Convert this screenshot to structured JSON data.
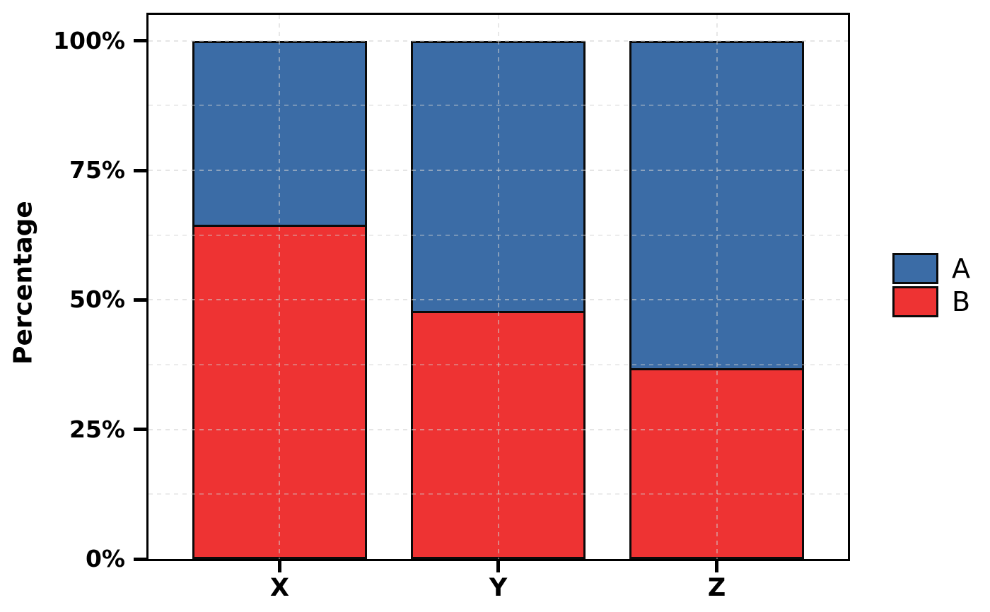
{
  "page": {
    "background": "#ffffff"
  },
  "chart_data": {
    "type": "bar",
    "variant": "stacked-100-percent",
    "title": "",
    "xlabel": "",
    "ylabel": "Percentage",
    "categories": [
      "X",
      "Y",
      "Z"
    ],
    "series": [
      {
        "name": "A",
        "color": "#3B6CA6",
        "values": [
          35.5,
          52.2,
          63.2
        ]
      },
      {
        "name": "B",
        "color": "#EE3333",
        "values": [
          64.5,
          47.8,
          36.8
        ]
      }
    ],
    "stack_order_bottom_to_top": [
      "B",
      "A"
    ],
    "y_ticks": [
      {
        "value": 0,
        "label": "0%"
      },
      {
        "value": 25,
        "label": "25%"
      },
      {
        "value": 50,
        "label": "50%"
      },
      {
        "value": 75,
        "label": "75%"
      },
      {
        "value": 100,
        "label": "100%"
      }
    ],
    "x_tick_labels": [
      "X",
      "Y",
      "Z"
    ],
    "ylim": [
      0,
      105
    ],
    "grid": {
      "style": "dashed",
      "on_top_of_bars": true,
      "major_y": [
        25,
        50,
        75,
        100
      ],
      "minor_y": [
        12.5,
        37.5,
        62.5,
        87.5
      ],
      "vertical_at_category_centers": true,
      "color": "#d0d0d0"
    },
    "bar_outline_color": "#0a0a0a",
    "panel_border_color": "#000000",
    "axis_text_color": "#000000",
    "legend": {
      "position": "right",
      "entries": [
        {
          "label": "A",
          "color": "#3B6CA6"
        },
        {
          "label": "B",
          "color": "#EE3333"
        }
      ]
    }
  }
}
